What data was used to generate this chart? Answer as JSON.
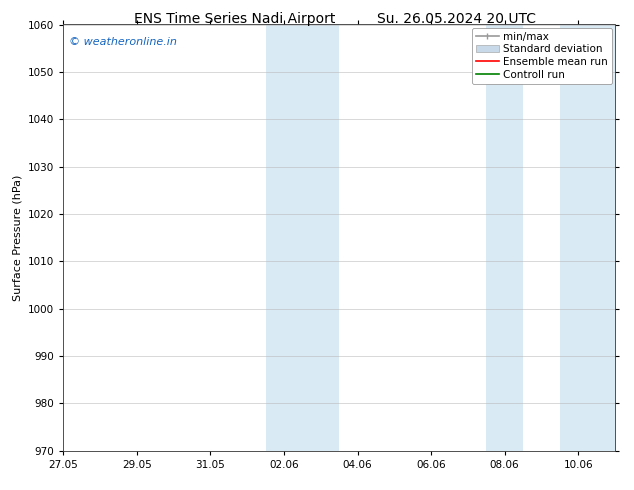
{
  "title_left": "ENS Time Series Nadi Airport",
  "title_right": "Su. 26.05.2024 20 UTC",
  "ylabel": "Surface Pressure (hPa)",
  "ylim": [
    970,
    1060
  ],
  "xlim": [
    0,
    15
  ],
  "xtick_labels": [
    "27.05",
    "29.05",
    "31.05",
    "02.06",
    "04.06",
    "06.06",
    "08.06",
    "10.06"
  ],
  "xtick_positions": [
    0,
    2,
    4,
    6,
    8,
    10,
    12,
    14
  ],
  "shaded_bands": [
    {
      "x_start": 5.5,
      "x_end": 7.5
    },
    {
      "x_start": 11.5,
      "x_end": 12.5
    },
    {
      "x_start": 13.5,
      "x_end": 15.0
    }
  ],
  "watermark": "© weatheronline.in",
  "watermark_color": "#1565C0",
  "legend_items": [
    {
      "label": "min/max",
      "color": "#aaaaaa"
    },
    {
      "label": "Standard deviation",
      "color": "#c8daea"
    },
    {
      "label": "Ensemble mean run",
      "color": "red"
    },
    {
      "label": "Controll run",
      "color": "green"
    }
  ],
  "bg_color": "#ffffff",
  "plot_bg_color": "#ffffff",
  "shaded_color": "#daeaf5",
  "grid_color": "#bbbbbb",
  "title_fontsize": 10,
  "label_fontsize": 8,
  "tick_fontsize": 7.5,
  "legend_fontsize": 7.5
}
